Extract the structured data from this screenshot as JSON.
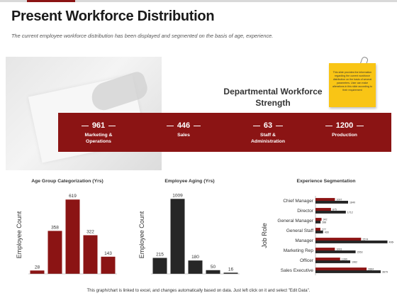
{
  "page": {
    "title": "Present Workforce Distribution",
    "subtitle": "The current employee workforce distribution has been displayed and segmented  on the basis of age, experience.",
    "footnote": "This graph/chart is linked to excel, and changes automatically based on data. Just left click on it and select \"Edit Data\"."
  },
  "colors": {
    "brand": "#8b1414",
    "dark": "#262626",
    "sticky": "#f9c515"
  },
  "department": {
    "title": "Departmental Workforce Strength",
    "stats": [
      {
        "value": "961",
        "label": "Marketing & Operations"
      },
      {
        "value": "446",
        "label": "Sales"
      },
      {
        "value": "63",
        "label": "Staff & Administration"
      },
      {
        "value": "1200",
        "label": "Production"
      }
    ]
  },
  "note": {
    "text": "This slide provides the information regarding the current workforce distribution on the basis of several parameters. User can make alterations in this slide according to their requirement"
  },
  "chart_data": [
    {
      "type": "bar",
      "title": "Age Group Categorization (Yrs)",
      "ylabel": "Employee Count",
      "xlabel": "",
      "values": [
        28,
        358,
        619,
        322,
        143
      ],
      "ylim": [
        0,
        650
      ],
      "color": "#8b1414"
    },
    {
      "type": "bar",
      "title": "Employee Aging (Yrs)",
      "ylabel": "Employee Count",
      "xlabel": "",
      "values": [
        215,
        1009,
        180,
        50,
        16
      ],
      "ylim": [
        0,
        1050
      ],
      "color": "#262626"
    },
    {
      "type": "bar",
      "orientation": "horizontal",
      "title": "Experience Segmentation",
      "ylabel": "Job Role",
      "categories": [
        "Chief Manager",
        "Director",
        "General Manager",
        "General Staff",
        "Manager",
        "Marketing Rep",
        "Officer",
        "Sales Executive"
      ],
      "series": [
        {
          "color": "#8b1414",
          "values": [
            1097,
            875,
            342,
            277,
            2574,
            1093,
            1390,
            2884
          ]
        },
        {
          "color": "#262626",
          "values": [
            1840,
            1712,
            288,
            428,
            4060,
            2263,
            1962,
            3679
          ]
        }
      ],
      "xlim": [
        0,
        4200
      ]
    }
  ]
}
